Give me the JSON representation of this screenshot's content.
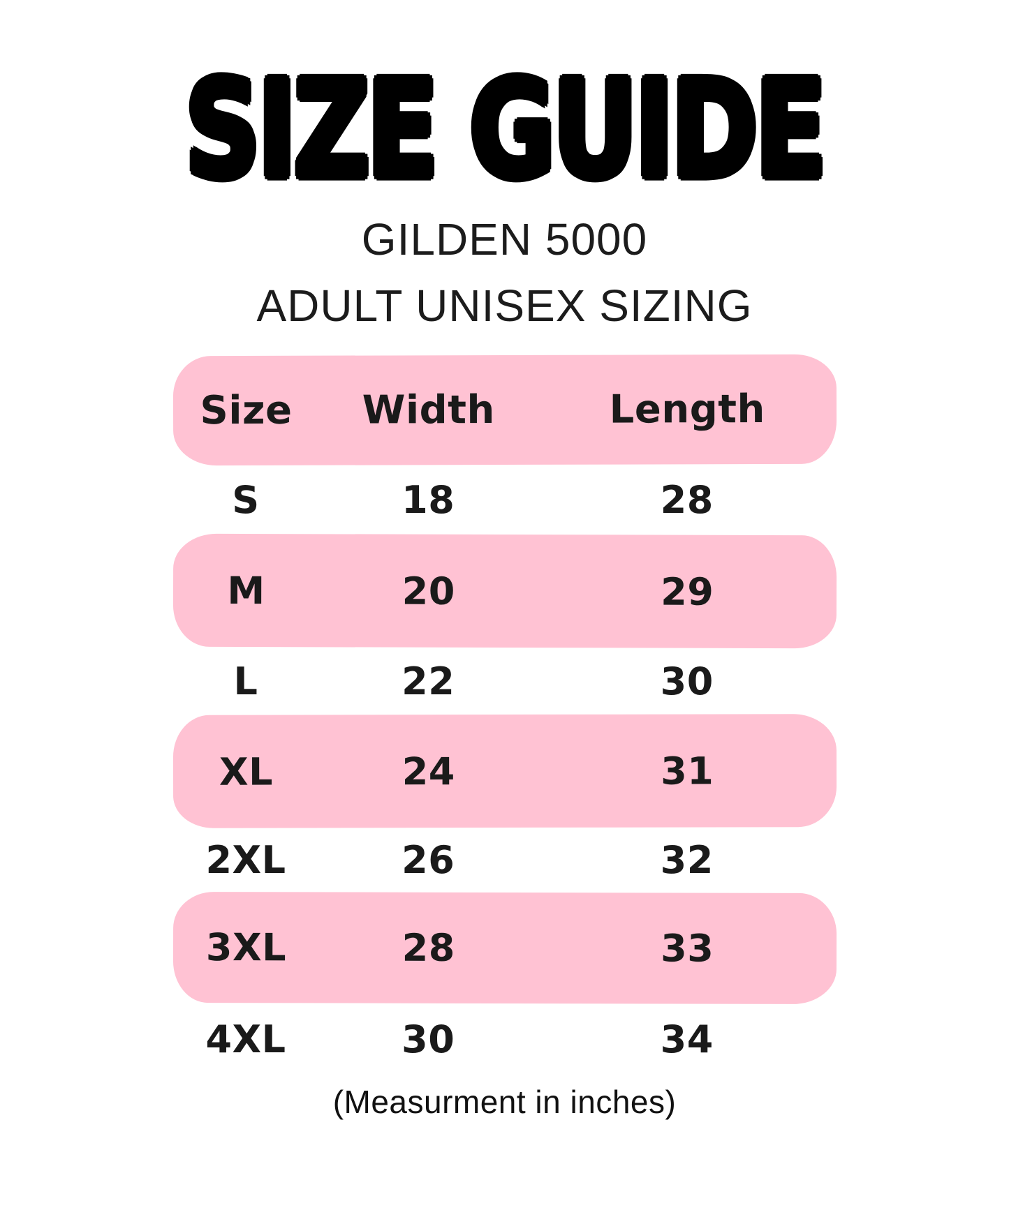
{
  "page": {
    "background_color": "#ffffff",
    "text_color": "#161616"
  },
  "header": {
    "title": "SIZE GUIDE",
    "subtitle_line1": "GILDEN 5000",
    "subtitle_line2": "ADULT UNISEX SIZING"
  },
  "table": {
    "highlight_color": "#ffc2d3",
    "columns": [
      "Size",
      "Width",
      "Length"
    ],
    "rows": [
      {
        "size": "S",
        "width": "18",
        "length": "28",
        "highlighted": false
      },
      {
        "size": "M",
        "width": "20",
        "length": "29",
        "highlighted": true
      },
      {
        "size": "L",
        "width": "22",
        "length": "30",
        "highlighted": false
      },
      {
        "size": "XL",
        "width": "24",
        "length": "31",
        "highlighted": true
      },
      {
        "size": "2XL",
        "width": "26",
        "length": "32",
        "highlighted": false
      },
      {
        "size": "3XL",
        "width": "28",
        "length": "33",
        "highlighted": true
      },
      {
        "size": "4XL",
        "width": "30",
        "length": "34",
        "highlighted": false
      }
    ]
  },
  "footer": {
    "note": "(Measurment in inches)"
  },
  "chart_data": {
    "type": "table",
    "title": "SIZE GUIDE",
    "subtitle": [
      "GILDEN 5000",
      "ADULT UNISEX SIZING"
    ],
    "columns": [
      "Size",
      "Width",
      "Length"
    ],
    "rows": [
      [
        "S",
        18,
        28
      ],
      [
        "M",
        20,
        29
      ],
      [
        "L",
        22,
        30
      ],
      [
        "XL",
        24,
        31
      ],
      [
        "2XL",
        26,
        32
      ],
      [
        "3XL",
        28,
        33
      ],
      [
        "4XL",
        30,
        34
      ]
    ],
    "units": "inches",
    "note": "(Measurment in inches)",
    "layout_hints": {
      "highlighted_rows": [
        "header",
        "M",
        "XL",
        "3XL"
      ],
      "highlight_color": "#ffc2d3",
      "row_band_style": "rounded-blob"
    }
  }
}
